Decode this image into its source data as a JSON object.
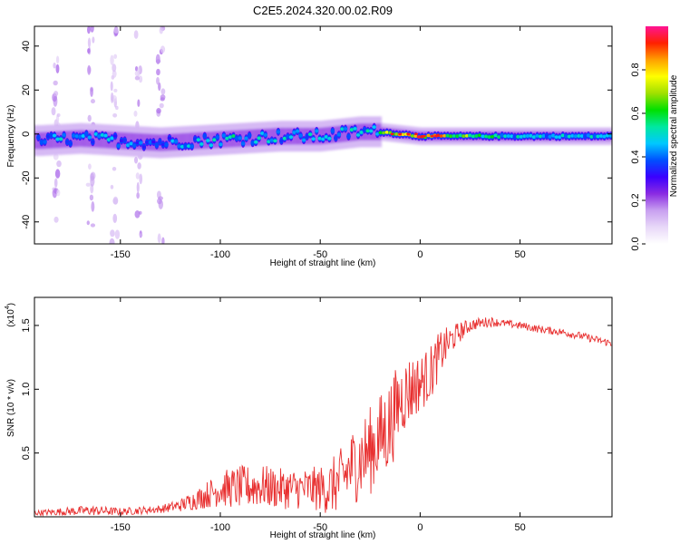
{
  "figure": {
    "title": "C2E5.2024.320.00.02.R09"
  },
  "colorbar": {
    "label": "Normalized spectral amplitude",
    "ticks": [
      "0.0",
      "0.2",
      "0.4",
      "0.6",
      "0.8"
    ],
    "tick_values": [
      0.0,
      0.2,
      0.4,
      0.6,
      0.8
    ],
    "range": [
      0,
      1
    ],
    "colors": [
      "#ffffff",
      "#e8d8f8",
      "#c8a0f0",
      "#8a2be2",
      "#3a00ff",
      "#0050ff",
      "#00c8ff",
      "#00e8a0",
      "#00e000",
      "#a0e000",
      "#ffff00",
      "#ffa000",
      "#ff2000",
      "#ff1493"
    ]
  },
  "chart_data": [
    {
      "type": "heatmap",
      "title": "",
      "xlabel": "Height of straight line (km)",
      "ylabel": "Frequency (Hz)",
      "xlim": [
        -193,
        96
      ],
      "ylim": [
        -50,
        49
      ],
      "xticks": [
        "-150",
        "-100",
        "-50",
        "0",
        "50"
      ],
      "xtick_values": [
        -150,
        -100,
        -50,
        0,
        50
      ],
      "yticks": [
        "40",
        "20",
        "0",
        "-20",
        "-40"
      ],
      "ytick_values": [
        40,
        20,
        0,
        -20,
        -40
      ],
      "ridge": {
        "x": [
          -190,
          -170,
          -150,
          -130,
          -110,
          -90,
          -70,
          -50,
          -30,
          -20,
          -10,
          0,
          10,
          30,
          50,
          70,
          95
        ],
        "center_hz": [
          -3,
          -2,
          -3,
          -4,
          -3,
          -2,
          -1,
          -1,
          1,
          1,
          0,
          -1,
          -1,
          -1,
          -1,
          -1,
          -1
        ],
        "peak_amplitude": [
          0.45,
          0.5,
          0.45,
          0.4,
          0.5,
          0.55,
          0.5,
          0.5,
          0.5,
          0.6,
          0.95,
          0.9,
          0.85,
          0.6,
          0.5,
          0.5,
          0.5
        ]
      },
      "noise_streaks_x": [
        -182,
        -165,
        -153,
        -141,
        -130
      ]
    },
    {
      "type": "line",
      "title": "",
      "xlabel": "Height of straight line (km)",
      "ylabel": "SNR (10 * v/v)",
      "y_multiplier_label": "(x10",
      "y_multiplier_exp": "4",
      "xlim": [
        -193,
        96
      ],
      "ylim": [
        0,
        1.72
      ],
      "xticks": [
        "-150",
        "-100",
        "-50",
        "0",
        "50"
      ],
      "xtick_values": [
        -150,
        -100,
        -50,
        0,
        50
      ],
      "yticks": [
        "0.5",
        "1.0",
        "1.5"
      ],
      "ytick_values": [
        0.5,
        1.0,
        1.5
      ],
      "series": [
        {
          "color": "#e83030",
          "x": [
            -193,
            -180,
            -165,
            -150,
            -140,
            -130,
            -120,
            -110,
            -100,
            -90,
            -80,
            -70,
            -60,
            -50,
            -45,
            -40,
            -35,
            -30,
            -25,
            -20,
            -15,
            -10,
            -5,
            0,
            5,
            10,
            15,
            20,
            25,
            30,
            35,
            40,
            50,
            60,
            70,
            80,
            90,
            96
          ],
          "y": [
            0.03,
            0.04,
            0.05,
            0.04,
            0.05,
            0.06,
            0.09,
            0.15,
            0.22,
            0.23,
            0.24,
            0.22,
            0.22,
            0.22,
            0.23,
            0.28,
            0.38,
            0.45,
            0.52,
            0.62,
            0.72,
            0.92,
            1.0,
            1.05,
            1.12,
            1.28,
            1.38,
            1.45,
            1.5,
            1.52,
            1.53,
            1.52,
            1.5,
            1.47,
            1.45,
            1.42,
            1.38,
            1.36
          ],
          "noise_amplitude": [
            0.02,
            0.03,
            0.04,
            0.03,
            0.03,
            0.03,
            0.05,
            0.09,
            0.14,
            0.17,
            0.17,
            0.16,
            0.16,
            0.18,
            0.22,
            0.25,
            0.3,
            0.32,
            0.35,
            0.35,
            0.38,
            0.3,
            0.28,
            0.22,
            0.22,
            0.18,
            0.12,
            0.08,
            0.05,
            0.04,
            0.04,
            0.03,
            0.03,
            0.03,
            0.03,
            0.03,
            0.03,
            0.03
          ]
        }
      ]
    }
  ]
}
